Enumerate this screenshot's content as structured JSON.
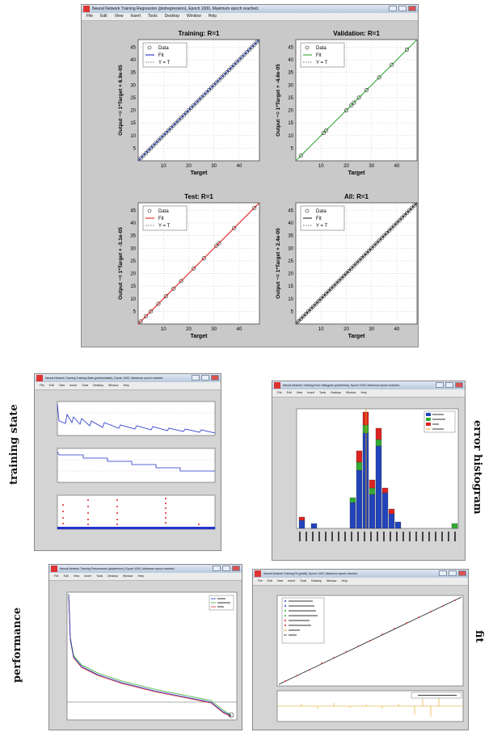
{
  "main_window": {
    "title": "Neural Network Training Regression (plotregression), Epoch 1000, Maximum epoch reached.",
    "menu": [
      "File",
      "Edit",
      "View",
      "Insert",
      "Tools",
      "Desktop",
      "Window",
      "Help"
    ]
  },
  "small_windows": {
    "training_state_title": "Neural Network Training Training State (plottrainstate), Epoch 1000, Maximum epoch reached.",
    "error_histogram_title": "Neural Network Training Error Histogram (ploterrhist), Epoch 1000, Maximum epoch reached.",
    "performance_title": "Neural Network Training Performance (plotperform), Epoch 1000, Maximum epoch reached.",
    "fit_title": "Neural Network Training Fit (plotfit), Epoch 1000, Maximum epoch reached.",
    "menu": [
      "File",
      "Edit",
      "View",
      "Insert",
      "Tools",
      "Desktop",
      "Window",
      "Help"
    ]
  },
  "side_labels": {
    "training_state": "training state",
    "error_histogram": "error histogram",
    "performance": "performance",
    "fit": "fit"
  },
  "colors": {
    "training_fit": "#2233cc",
    "validation_fit": "#33aa33",
    "test_fit": "#dd2222",
    "all_fit": "#222222",
    "window_bg": "#c9c9c9",
    "plot_bg": "#ffffff"
  },
  "chart_data": [
    {
      "type": "scatter",
      "id": "training",
      "title": "Training: R=1",
      "xlabel": "Target",
      "ylabel": "Output ~= 1*Target + 6.9e-05",
      "xlim": [
        0,
        48
      ],
      "ylim": [
        0,
        48
      ],
      "xticks": [
        10,
        20,
        30,
        40
      ],
      "yticks": [
        5,
        10,
        15,
        20,
        25,
        30,
        35,
        40,
        45
      ],
      "legend": [
        "Data",
        "Fit",
        "Y = T"
      ],
      "legend_position": "top-left",
      "points": [
        1,
        2,
        3,
        4,
        5,
        6,
        7,
        8,
        9,
        10,
        11,
        12,
        13,
        14,
        15,
        16,
        17,
        18,
        19,
        20,
        21,
        22,
        23,
        24,
        25,
        26,
        27,
        28,
        29,
        30,
        31,
        32,
        33,
        34,
        35,
        36,
        37,
        38,
        39,
        40,
        41,
        42,
        43,
        44,
        45,
        46,
        47
      ]
    },
    {
      "type": "scatter",
      "id": "validation",
      "title": "Validation: R=1",
      "xlabel": "Target",
      "ylabel": "Output ~= 1*Target + -4.6e-05",
      "xlim": [
        0,
        48
      ],
      "ylim": [
        0,
        48
      ],
      "xticks": [
        10,
        20,
        30,
        40
      ],
      "yticks": [
        5,
        10,
        15,
        20,
        25,
        30,
        35,
        40,
        45
      ],
      "legend": [
        "Data",
        "Fit",
        "Y = T"
      ],
      "legend_position": "top-left",
      "points": [
        2,
        11,
        12,
        20,
        22,
        23,
        25,
        28,
        33,
        38,
        44
      ]
    },
    {
      "type": "scatter",
      "id": "test",
      "title": "Test: R=1",
      "xlabel": "Target",
      "ylabel": "Output ~= 1*Target + -3.1e-05",
      "xlim": [
        0,
        48
      ],
      "ylim": [
        0,
        48
      ],
      "xticks": [
        10,
        20,
        30,
        40
      ],
      "yticks": [
        5,
        10,
        15,
        20,
        25,
        30,
        35,
        40,
        45
      ],
      "legend": [
        "Data",
        "Fit",
        "Y = T"
      ],
      "legend_position": "top-left",
      "points": [
        1,
        3,
        5,
        8,
        11,
        14,
        17,
        22,
        26,
        31,
        32,
        38,
        46
      ]
    },
    {
      "type": "scatter",
      "id": "all",
      "title": "All: R=1",
      "xlabel": "Target",
      "ylabel": "Output ~= 1*Target + 2.4e-05",
      "xlim": [
        0,
        48
      ],
      "ylim": [
        0,
        48
      ],
      "xticks": [
        10,
        20,
        30,
        40
      ],
      "yticks": [
        5,
        10,
        15,
        20,
        25,
        30,
        35,
        40,
        45
      ],
      "legend": [
        "Data",
        "Fit",
        "Y = T"
      ],
      "legend_position": "top-left",
      "points": [
        1,
        2,
        3,
        4,
        5,
        6,
        7,
        8,
        9,
        10,
        11,
        12,
        13,
        14,
        15,
        16,
        17,
        18,
        19,
        20,
        21,
        22,
        23,
        24,
        25,
        26,
        27,
        28,
        29,
        30,
        31,
        32,
        33,
        34,
        35,
        36,
        37,
        38,
        39,
        40,
        41,
        42,
        43,
        44,
        45,
        46,
        47
      ]
    }
  ]
}
